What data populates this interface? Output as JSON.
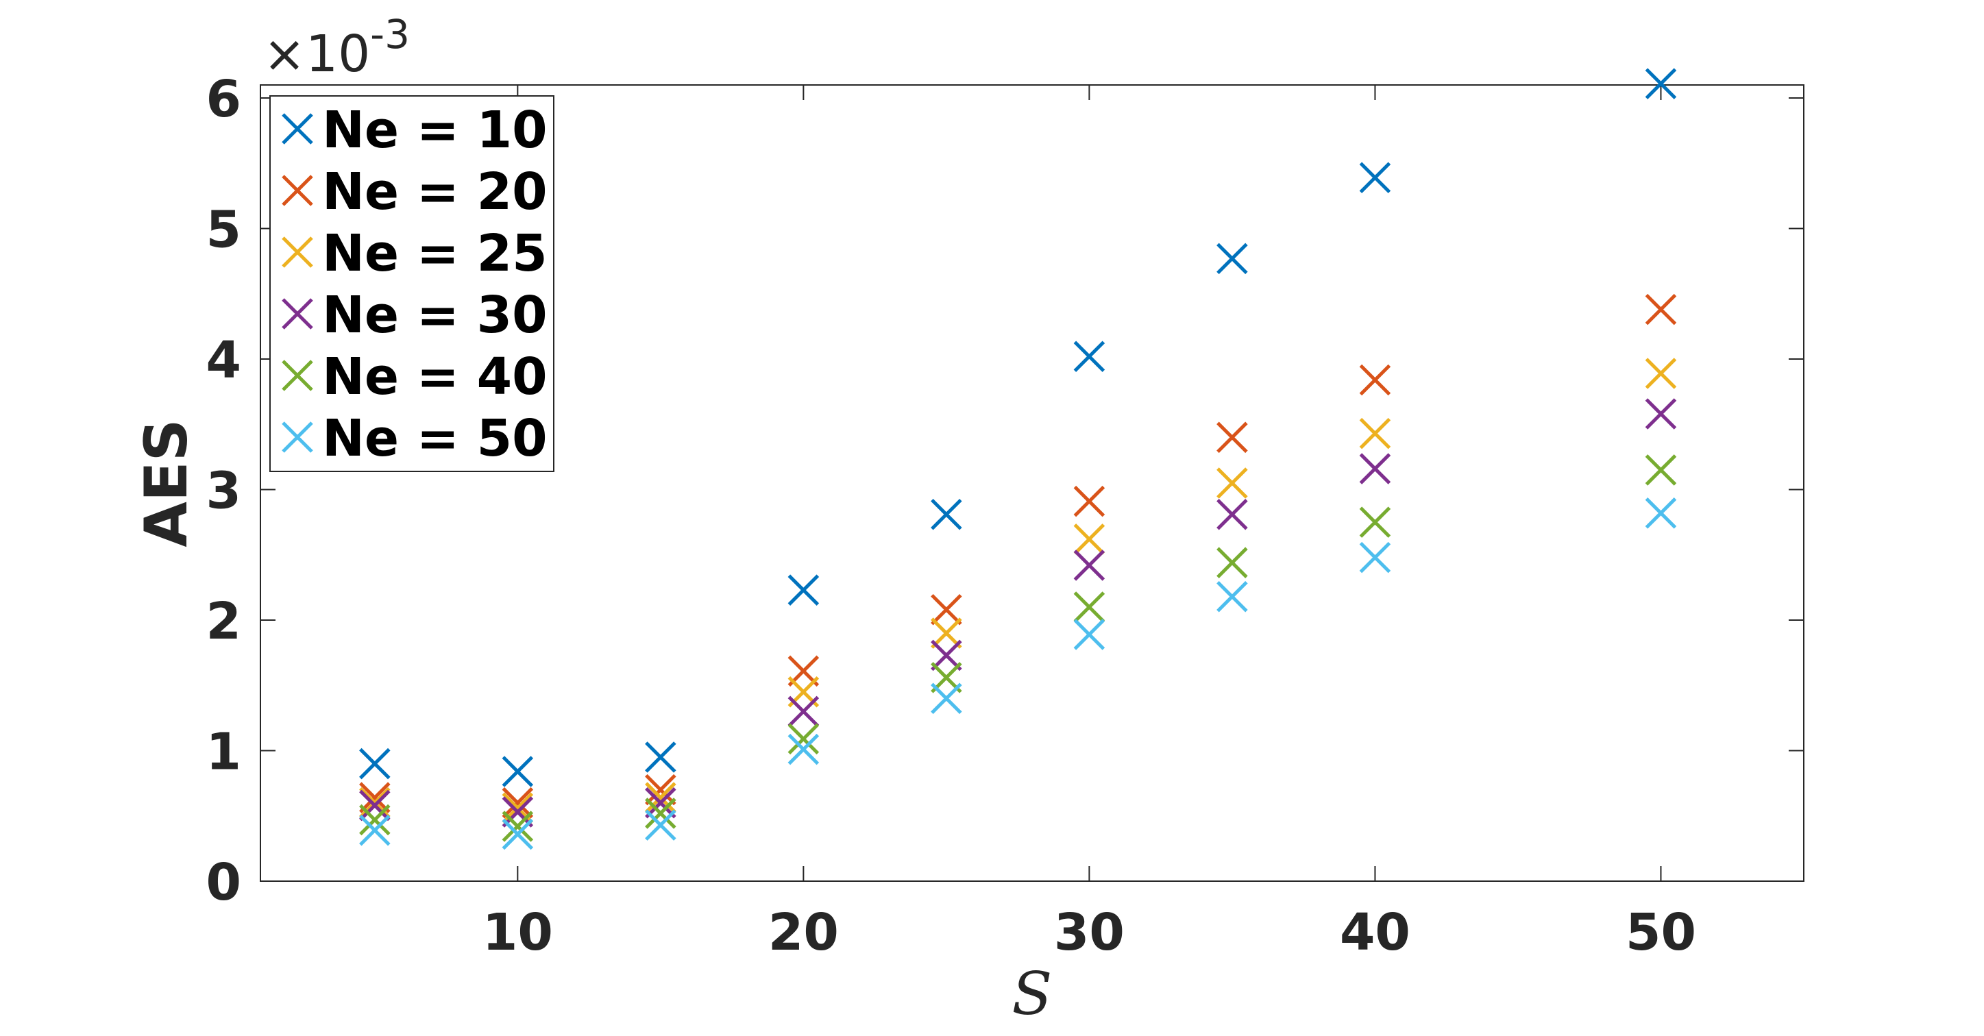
{
  "chart_data": {
    "type": "scatter",
    "title": "",
    "xlabel": "S",
    "ylabel": "AES",
    "y_multiplier": {
      "base": "×10",
      "exponent": "-3"
    },
    "xlim": [
      1,
      55
    ],
    "ylim": [
      0,
      6.1
    ],
    "x_ticks": [
      10,
      20,
      30,
      40,
      50
    ],
    "y_ticks": [
      0,
      1,
      2,
      3,
      4,
      5,
      6
    ],
    "grid": false,
    "legend_position": "top-left",
    "marker": "x",
    "x": [
      5,
      10,
      15,
      20,
      25,
      30,
      35,
      40,
      50
    ],
    "series": [
      {
        "name": "Ne = 10",
        "color": "#0072BD",
        "values": [
          0.9,
          0.84,
          0.95,
          2.23,
          2.81,
          4.02,
          4.77,
          5.39,
          6.11
        ]
      },
      {
        "name": "Ne = 20",
        "color": "#D95319",
        "values": [
          0.64,
          0.6,
          0.7,
          1.61,
          2.08,
          2.91,
          3.4,
          3.84,
          4.38
        ]
      },
      {
        "name": "Ne = 25",
        "color": "#EDB120",
        "values": [
          0.6,
          0.56,
          0.64,
          1.45,
          1.9,
          2.62,
          3.05,
          3.43,
          3.89
        ]
      },
      {
        "name": "Ne = 30",
        "color": "#7E2F8E",
        "values": [
          0.58,
          0.53,
          0.6,
          1.3,
          1.73,
          2.42,
          2.81,
          3.16,
          3.58
        ]
      },
      {
        "name": "Ne = 40",
        "color": "#77AC30",
        "values": [
          0.47,
          0.42,
          0.52,
          1.09,
          1.56,
          2.1,
          2.44,
          2.75,
          3.15
        ]
      },
      {
        "name": "Ne = 50",
        "color": "#4DBEEE",
        "values": [
          0.39,
          0.36,
          0.43,
          1.01,
          1.4,
          1.89,
          2.18,
          2.48,
          2.82
        ]
      }
    ]
  }
}
